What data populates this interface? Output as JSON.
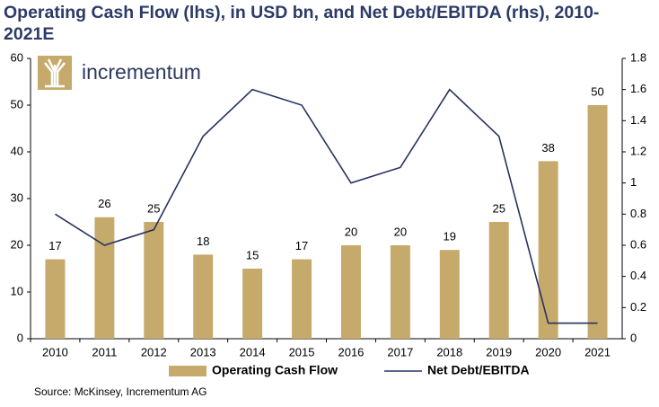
{
  "chart_data": {
    "type": "combo",
    "title": "Operating Cash Flow (lhs), in USD bn, and Net Debt/EBITDA (rhs), 2010-2021E",
    "categories": [
      "2010",
      "2011",
      "2012",
      "2013",
      "2014",
      "2015",
      "2016",
      "2017",
      "2018",
      "2019",
      "2020",
      "2021"
    ],
    "series": [
      {
        "name": "Operating Cash Flow",
        "type": "bar",
        "color": "#c6aa6c",
        "values": [
          17,
          26,
          25,
          18,
          15,
          17,
          20,
          20,
          19,
          25,
          38,
          50
        ]
      },
      {
        "name": "Net Debt/EBITDA",
        "type": "line",
        "axis": "y2",
        "color": "#26335f",
        "values": [
          0.8,
          0.6,
          0.7,
          1.3,
          1.6,
          1.5,
          1.0,
          1.1,
          1.6,
          1.3,
          0.1,
          0.1
        ]
      }
    ],
    "ylim": [
      0,
      60
    ],
    "yticks": [
      0,
      10,
      20,
      30,
      40,
      50,
      60
    ],
    "y2lim": [
      0,
      1.8
    ],
    "y2ticks": [
      0,
      0.2,
      0.4,
      0.6,
      0.8,
      1,
      1.2,
      1.4,
      1.6,
      1.8
    ],
    "legend": "bottom"
  },
  "logo": "incrementum",
  "source": "Source: McKinsey, Incrementum AG"
}
